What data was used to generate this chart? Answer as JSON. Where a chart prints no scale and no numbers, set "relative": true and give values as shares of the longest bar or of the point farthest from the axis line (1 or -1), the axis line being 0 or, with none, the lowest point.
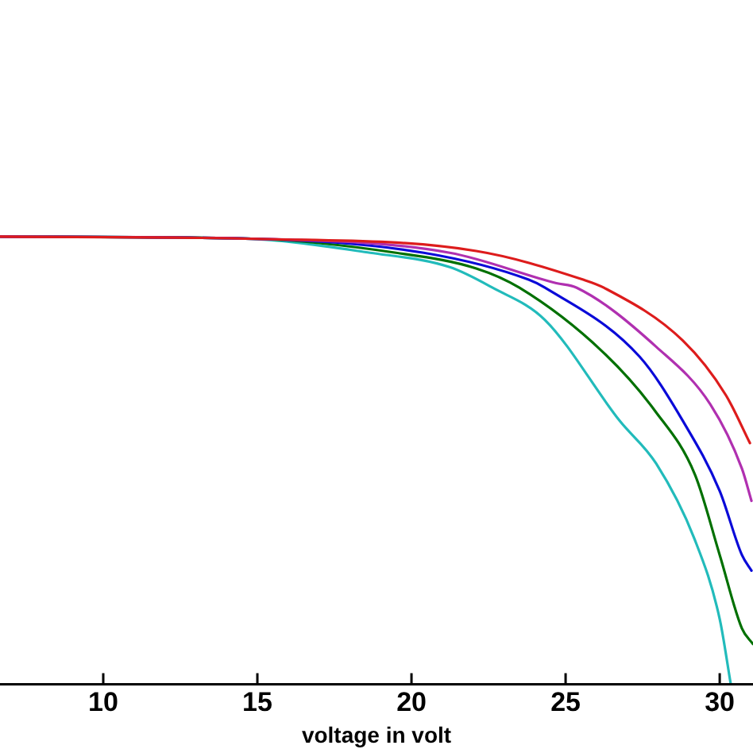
{
  "chart_data": {
    "type": "line",
    "xlabel": "voltage in volt",
    "relative": true,
    "xlim": [
      6.65,
      31.08
    ],
    "xticks": [
      10,
      15,
      20,
      25,
      30
    ],
    "grid": false,
    "legend": false,
    "marker": "none",
    "line_style": "solid",
    "series": [
      {
        "color": "#dd1c1c",
        "x": [
          6.65,
          15,
          22.1,
          25.57,
          26.24,
          28.8,
          30.2,
          30.98
        ],
        "values": [
          1,
          0.995,
          0.968,
          0.904,
          0.886,
          0.768,
          0.646,
          0.539
        ]
      },
      {
        "color": "#b030b0",
        "x": [
          6.65,
          15,
          21.24,
          24.7,
          25.36,
          27.94,
          29.7,
          30.72,
          31.03
        ],
        "values": [
          1,
          0.995,
          0.964,
          0.896,
          0.886,
          0.754,
          0.625,
          0.482,
          0.41
        ]
      },
      {
        "color": "#0a0ad8",
        "x": [
          6.65,
          15,
          20.4,
          23.8,
          24.33,
          27.4,
          28.8,
          30.0,
          30.72,
          31.03
        ],
        "values": [
          1,
          0.995,
          0.964,
          0.904,
          0.886,
          0.732,
          0.589,
          0.432,
          0.289,
          0.254
        ]
      },
      {
        "color": "#007000",
        "x": [
          6.65,
          15,
          19.5,
          22.1,
          23.5,
          26.2,
          27.9,
          29.2,
          30.0,
          30.72,
          31.08
        ],
        "values": [
          1,
          0.995,
          0.964,
          0.929,
          0.886,
          0.743,
          0.611,
          0.468,
          0.289,
          0.125,
          0.09
        ]
      },
      {
        "color": "#22bbbb",
        "x": [
          6.65,
          14.4,
          18.66,
          21.24,
          22.63,
          24.33,
          26.75,
          27.94,
          29.18,
          30.0,
          30.36
        ],
        "values": [
          1,
          0.996,
          0.964,
          0.932,
          0.886,
          0.814,
          0.589,
          0.493,
          0.325,
          0.146,
          0
        ]
      }
    ]
  }
}
